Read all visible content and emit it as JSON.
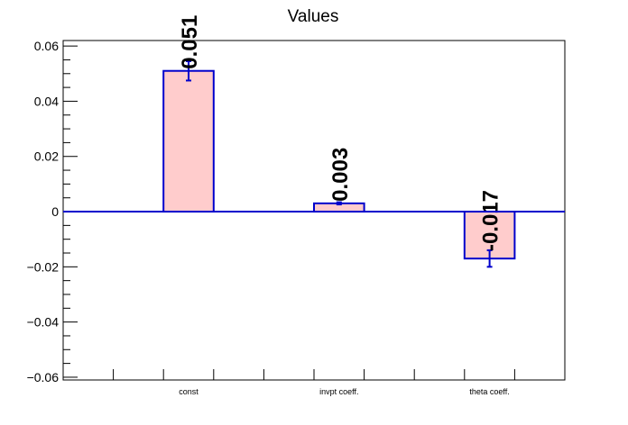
{
  "chart_data": {
    "type": "bar",
    "title": "Values",
    "categories": [
      "const",
      "invpt coeff.",
      "theta coeff."
    ],
    "values": [
      0.051,
      0.003,
      -0.017
    ],
    "errors": [
      0.0035,
      0.0004,
      0.003
    ],
    "value_labels": [
      "0.051",
      "0.003",
      "-0.017"
    ],
    "ylim": [
      -0.061,
      0.062
    ],
    "yticks": [
      -0.06,
      -0.04,
      -0.02,
      0,
      0.02,
      0.04,
      0.06
    ],
    "ytick_labels": [
      "−0.06",
      "−0.04",
      "−0.02",
      "0",
      "0.02",
      "0.04",
      "0.06"
    ],
    "bar_fill": "#ffcccc",
    "bar_stroke": "#0000cc",
    "grid": false,
    "legend": "none"
  }
}
